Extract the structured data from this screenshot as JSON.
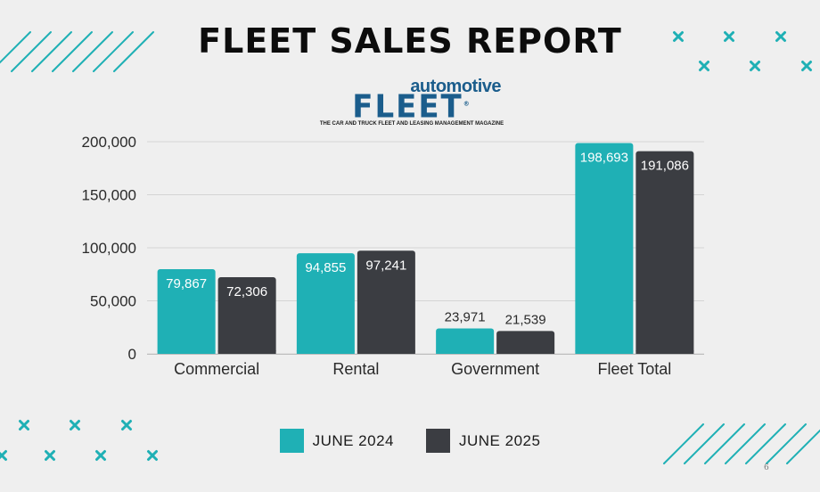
{
  "title": "FLEET SALES REPORT",
  "logo": {
    "top": "automotive",
    "main": "FLEET",
    "reg": "®",
    "tagline": "THE CAR AND TRUCK FLEET AND LEASING MANAGEMENT MAGAZINE"
  },
  "page_number": "6",
  "colors": {
    "series1": "#1fb0b5",
    "series2": "#3b3d42",
    "accent": "#1fb0b5"
  },
  "chart_data": {
    "type": "bar",
    "categories": [
      "Commercial",
      "Rental",
      "Government",
      "Fleet Total"
    ],
    "series": [
      {
        "name": "JUNE 2024",
        "values": [
          79867,
          94855,
          23971,
          198693
        ],
        "labels": [
          "79,867",
          "94,855",
          "23,971",
          "198,693"
        ]
      },
      {
        "name": "JUNE 2025",
        "values": [
          72306,
          97241,
          21539,
          191086
        ],
        "labels": [
          "72,306",
          "97,241",
          "21,539",
          "191,086"
        ]
      }
    ],
    "yticks": [
      0,
      50000,
      100000,
      150000,
      200000
    ],
    "ytick_labels": [
      "0",
      "50,000",
      "100,000",
      "150,000",
      "200,000"
    ],
    "ylim": [
      0,
      200000
    ],
    "grid": true,
    "legend": "bottom"
  }
}
